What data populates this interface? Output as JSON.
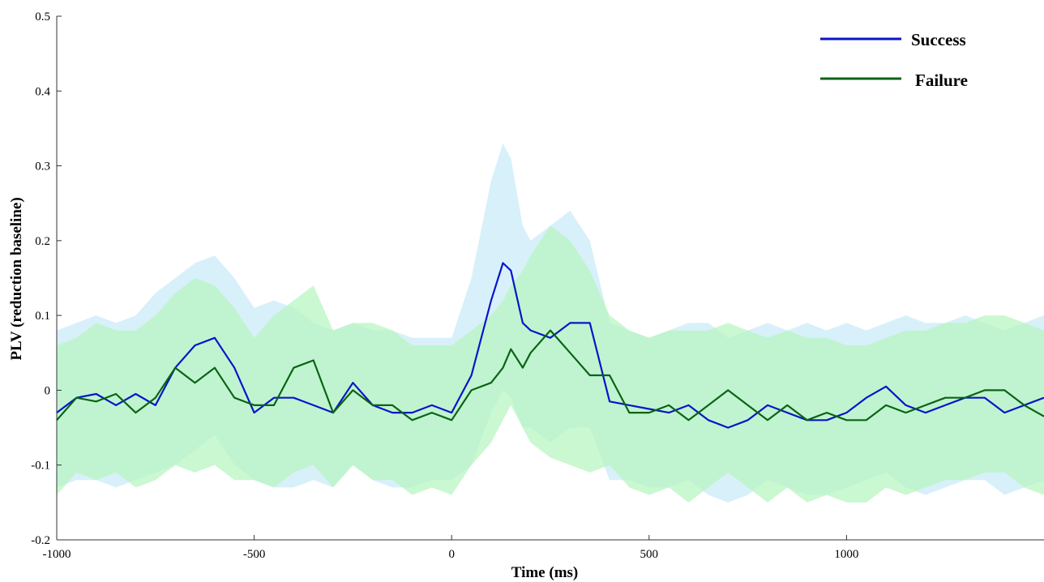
{
  "chart_data": {
    "type": "line",
    "title": "",
    "xlabel": "Time (ms)",
    "ylabel": "PLV (reduction baseline)",
    "xlim": [
      -1000,
      1500
    ],
    "ylim": [
      -0.2,
      0.5
    ],
    "xticks": [
      -1000,
      -500,
      0,
      500,
      1000
    ],
    "xtick_labels": [
      "-1000",
      "-500",
      "0",
      "500",
      "1000"
    ],
    "yticks": [
      -0.2,
      -0.1,
      0,
      0.1,
      0.2,
      0.3,
      0.4,
      0.5
    ],
    "ytick_labels": [
      "-0.2",
      "-0.1",
      "0",
      "0.1",
      "0.2",
      "0.3",
      "0.4",
      "0.5"
    ],
    "grid": false,
    "legend_position": "top-right",
    "x": [
      -1000,
      -950,
      -900,
      -850,
      -800,
      -750,
      -700,
      -650,
      -600,
      -550,
      -500,
      -450,
      -400,
      -350,
      -300,
      -250,
      -200,
      -150,
      -100,
      -50,
      0,
      50,
      100,
      130,
      150,
      180,
      200,
      250,
      300,
      350,
      400,
      450,
      500,
      550,
      600,
      650,
      700,
      750,
      800,
      850,
      900,
      950,
      1000,
      1050,
      1100,
      1150,
      1200,
      1250,
      1300,
      1350,
      1400,
      1450,
      1500
    ],
    "series": [
      {
        "name": "Success",
        "color": "#0a14c8",
        "band_color": "#d4eefa",
        "values": [
          -0.03,
          -0.01,
          -0.005,
          -0.02,
          -0.005,
          -0.02,
          0.03,
          0.06,
          0.07,
          0.03,
          -0.03,
          -0.01,
          -0.01,
          -0.02,
          -0.03,
          0.01,
          -0.02,
          -0.03,
          -0.03,
          -0.02,
          -0.03,
          0.02,
          0.12,
          0.17,
          0.16,
          0.09,
          0.08,
          0.07,
          0.09,
          0.09,
          -0.015,
          -0.02,
          -0.025,
          -0.03,
          -0.02,
          -0.04,
          -0.05,
          -0.04,
          -0.02,
          -0.03,
          -0.04,
          -0.04,
          -0.03,
          -0.01,
          0.005,
          -0.02,
          -0.03,
          -0.02,
          -0.01,
          -0.01,
          -0.03,
          -0.02,
          -0.01
        ],
        "upper": [
          0.08,
          0.09,
          0.1,
          0.09,
          0.1,
          0.13,
          0.15,
          0.17,
          0.18,
          0.15,
          0.11,
          0.12,
          0.11,
          0.09,
          0.08,
          0.09,
          0.08,
          0.08,
          0.07,
          0.07,
          0.07,
          0.15,
          0.28,
          0.33,
          0.31,
          0.22,
          0.2,
          0.22,
          0.24,
          0.2,
          0.09,
          0.08,
          0.07,
          0.08,
          0.09,
          0.09,
          0.07,
          0.08,
          0.09,
          0.08,
          0.09,
          0.08,
          0.09,
          0.08,
          0.09,
          0.1,
          0.09,
          0.09,
          0.1,
          0.09,
          0.08,
          0.09,
          0.1
        ],
        "lower": [
          -0.13,
          -0.12,
          -0.12,
          -0.13,
          -0.12,
          -0.11,
          -0.1,
          -0.08,
          -0.06,
          -0.1,
          -0.12,
          -0.13,
          -0.13,
          -0.12,
          -0.13,
          -0.1,
          -0.12,
          -0.13,
          -0.13,
          -0.12,
          -0.12,
          -0.1,
          -0.03,
          0.0,
          -0.01,
          -0.05,
          -0.05,
          -0.07,
          -0.05,
          -0.05,
          -0.12,
          -0.12,
          -0.13,
          -0.13,
          -0.12,
          -0.14,
          -0.15,
          -0.14,
          -0.12,
          -0.13,
          -0.14,
          -0.14,
          -0.13,
          -0.12,
          -0.11,
          -0.13,
          -0.14,
          -0.13,
          -0.12,
          -0.12,
          -0.14,
          -0.13,
          -0.12
        ]
      },
      {
        "name": "Failure",
        "color": "#0a6414",
        "band_color": "#b8f5c2",
        "values": [
          -0.04,
          -0.01,
          -0.015,
          -0.005,
          -0.03,
          -0.01,
          0.03,
          0.01,
          0.03,
          -0.01,
          -0.02,
          -0.02,
          0.03,
          0.04,
          -0.03,
          0.0,
          -0.02,
          -0.02,
          -0.04,
          -0.03,
          -0.04,
          0.0,
          0.01,
          0.03,
          0.055,
          0.03,
          0.05,
          0.08,
          0.05,
          0.02,
          0.02,
          -0.03,
          -0.03,
          -0.02,
          -0.04,
          -0.02,
          0.0,
          -0.02,
          -0.04,
          -0.02,
          -0.04,
          -0.03,
          -0.04,
          -0.04,
          -0.02,
          -0.03,
          -0.02,
          -0.01,
          -0.01,
          0.0,
          0.0,
          -0.02,
          -0.035
        ],
        "upper": [
          0.06,
          0.07,
          0.09,
          0.08,
          0.08,
          0.1,
          0.13,
          0.15,
          0.14,
          0.11,
          0.07,
          0.1,
          0.12,
          0.14,
          0.08,
          0.09,
          0.09,
          0.08,
          0.06,
          0.06,
          0.06,
          0.08,
          0.1,
          0.12,
          0.14,
          0.16,
          0.18,
          0.22,
          0.2,
          0.16,
          0.1,
          0.08,
          0.07,
          0.08,
          0.08,
          0.08,
          0.09,
          0.08,
          0.07,
          0.08,
          0.07,
          0.07,
          0.06,
          0.06,
          0.07,
          0.08,
          0.08,
          0.09,
          0.09,
          0.1,
          0.1,
          0.09,
          0.08
        ],
        "lower": [
          -0.14,
          -0.11,
          -0.12,
          -0.11,
          -0.13,
          -0.12,
          -0.1,
          -0.11,
          -0.1,
          -0.12,
          -0.12,
          -0.13,
          -0.11,
          -0.1,
          -0.13,
          -0.1,
          -0.12,
          -0.12,
          -0.14,
          -0.13,
          -0.14,
          -0.1,
          -0.07,
          -0.04,
          -0.02,
          -0.05,
          -0.07,
          -0.09,
          -0.1,
          -0.11,
          -0.1,
          -0.13,
          -0.14,
          -0.13,
          -0.15,
          -0.13,
          -0.11,
          -0.13,
          -0.15,
          -0.13,
          -0.15,
          -0.14,
          -0.15,
          -0.15,
          -0.13,
          -0.14,
          -0.13,
          -0.12,
          -0.12,
          -0.11,
          -0.11,
          -0.13,
          -0.14
        ]
      }
    ]
  }
}
